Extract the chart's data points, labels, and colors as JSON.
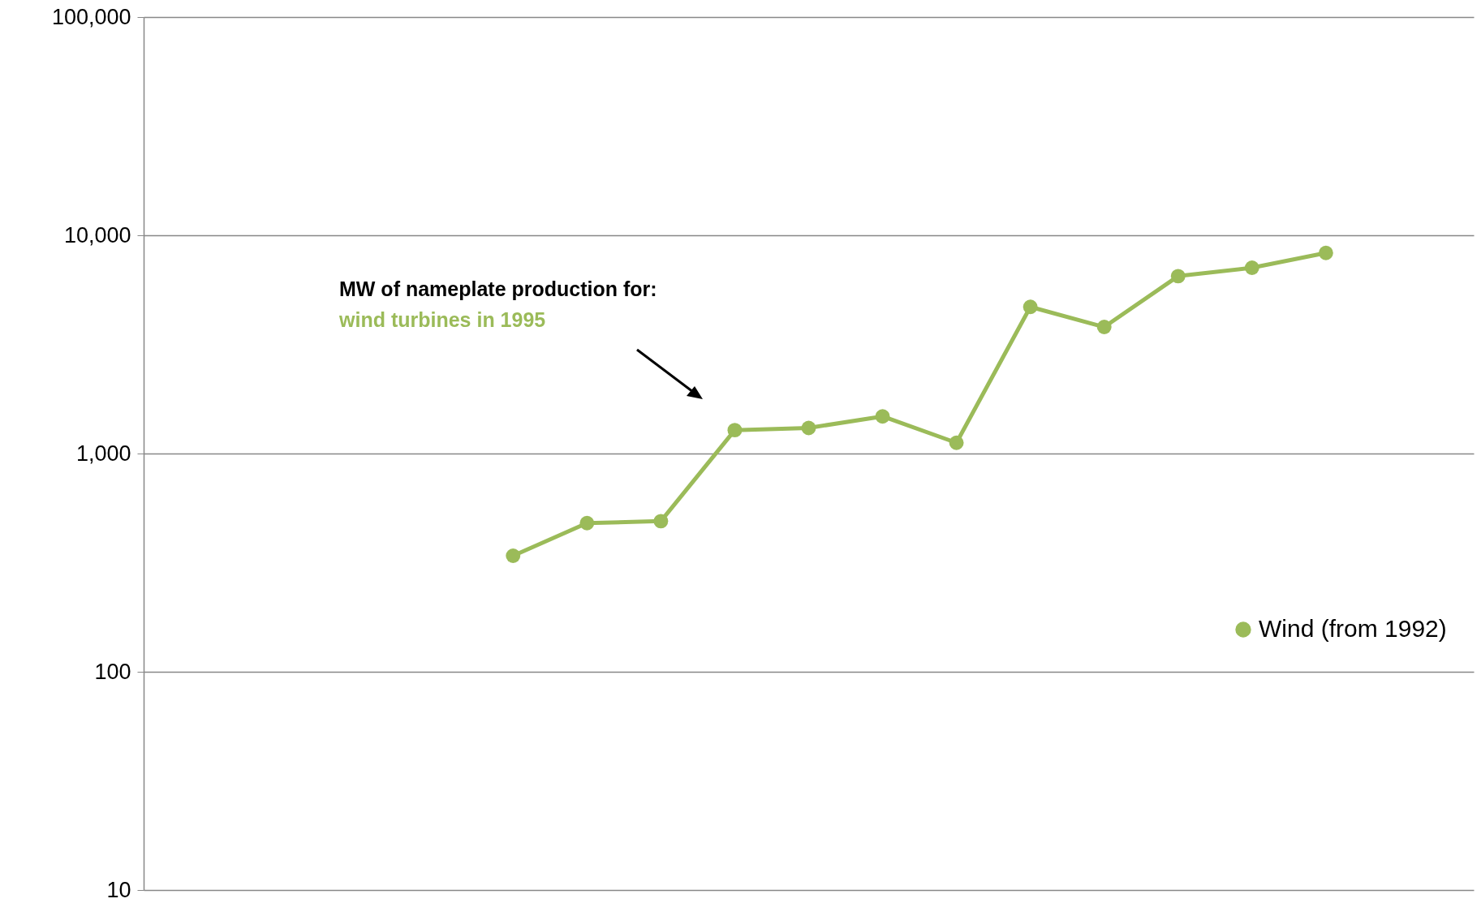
{
  "chart_data": {
    "type": "line",
    "categories": [
      null,
      null,
      null,
      null,
      null,
      null,
      null,
      null,
      null,
      null,
      null,
      null,
      null,
      null,
      null,
      null,
      null,
      null,
      null
    ],
    "series": [
      {
        "name": "Wind (from 1992)",
        "color": "#9bbb59",
        "values": [
          null,
          null,
          null,
          null,
          null,
          340,
          480,
          490,
          1280,
          1310,
          1480,
          1120,
          4700,
          3800,
          6500,
          7100,
          8300,
          null,
          null
        ]
      }
    ],
    "log": true,
    "ylim": [
      10,
      100000
    ],
    "yticks": [
      {
        "value": 10,
        "label": "10"
      },
      {
        "value": 100,
        "label": "100"
      },
      {
        "value": 1000,
        "label": "1,000"
      },
      {
        "value": 10000,
        "label": "10,000"
      },
      {
        "value": 100000,
        "label": "100,000"
      }
    ],
    "grid": "y",
    "tick_labels": "y",
    "legend": "bottom right",
    "marker": "circle",
    "line_style": "solid",
    "annotations": [
      "MW of nameplate production for:",
      "wind turbines in 1995"
    ]
  }
}
